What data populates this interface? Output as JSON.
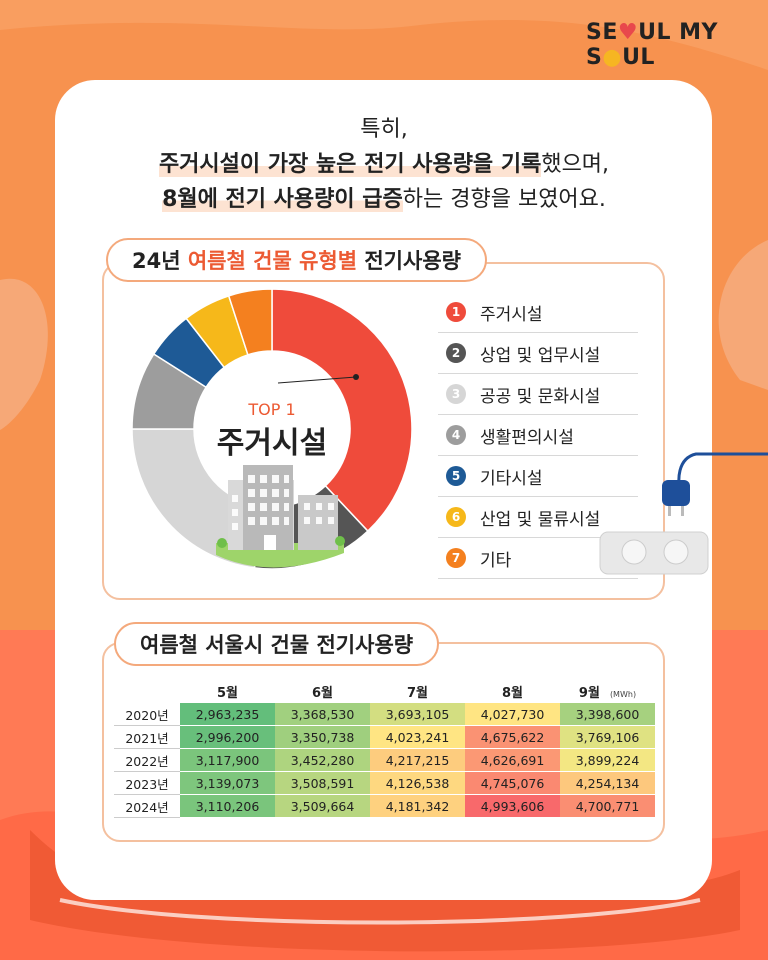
{
  "logo": {
    "part1": "SE",
    "heart": "♥",
    "part2": "UL MY S",
    "bulb": "●",
    "part3": "UL"
  },
  "intro": {
    "line1": "특히,",
    "line2_hl": "주거시설이 가장 높은 전기 사용량을 기록",
    "line2_rest": "했으며,",
    "line3_hl": "8월에 전기 사용량이 급증",
    "line3_rest": "하는 경향을 보였어요."
  },
  "section1": {
    "title_a": "24년 ",
    "title_b": "여름철 건물 유형별",
    "title_c": " 전기사용량"
  },
  "top_label": {
    "rank": "TOP 1",
    "name": "주거시설"
  },
  "section2": {
    "title": "여름철 서울시 건물 전기사용량"
  },
  "colors": {
    "accent": "#ec5a33",
    "border": "#f4c09f"
  },
  "chart_data": [
    {
      "type": "pie",
      "title": "24년 여름철 건물 유형별 전기사용량",
      "categories": [
        "주거시설",
        "상업 및 업무시설",
        "공공 및 문화시설",
        "생활편의시설",
        "기타시설",
        "산업 및 물류시설",
        "기타"
      ],
      "numbers": [
        "1",
        "2",
        "3",
        "4",
        "5",
        "6",
        "7"
      ],
      "values": [
        38,
        14,
        23,
        9,
        5.5,
        5.5,
        5
      ],
      "colors": [
        "#ef4b3b",
        "#555555",
        "#d6d6d6",
        "#9d9d9d",
        "#1e5a96",
        "#f6b81a",
        "#f4801f"
      ]
    },
    {
      "type": "table",
      "title": "여름철 서울시 건물 전기사용량",
      "unit": "(MWh)",
      "columns": [
        "5월",
        "6월",
        "7월",
        "8월",
        "9월"
      ],
      "rows": [
        {
          "year": "2020년",
          "values": [
            "2,963,235",
            "3,368,530",
            "3,693,105",
            "4,027,730",
            "3,398,600"
          ]
        },
        {
          "year": "2021년",
          "values": [
            "2,996,200",
            "3,350,738",
            "4,023,241",
            "4,675,622",
            "3,769,106"
          ]
        },
        {
          "year": "2022년",
          "values": [
            "3,117,900",
            "3,452,280",
            "4,217,215",
            "4,626,691",
            "3,899,224"
          ]
        },
        {
          "year": "2023년",
          "values": [
            "3,139,073",
            "3,508,591",
            "4,126,538",
            "4,745,076",
            "4,254,134"
          ]
        },
        {
          "year": "2024년",
          "values": [
            "3,110,206",
            "3,509,664",
            "4,181,342",
            "4,993,606",
            "4,700,771"
          ]
        }
      ]
    }
  ]
}
